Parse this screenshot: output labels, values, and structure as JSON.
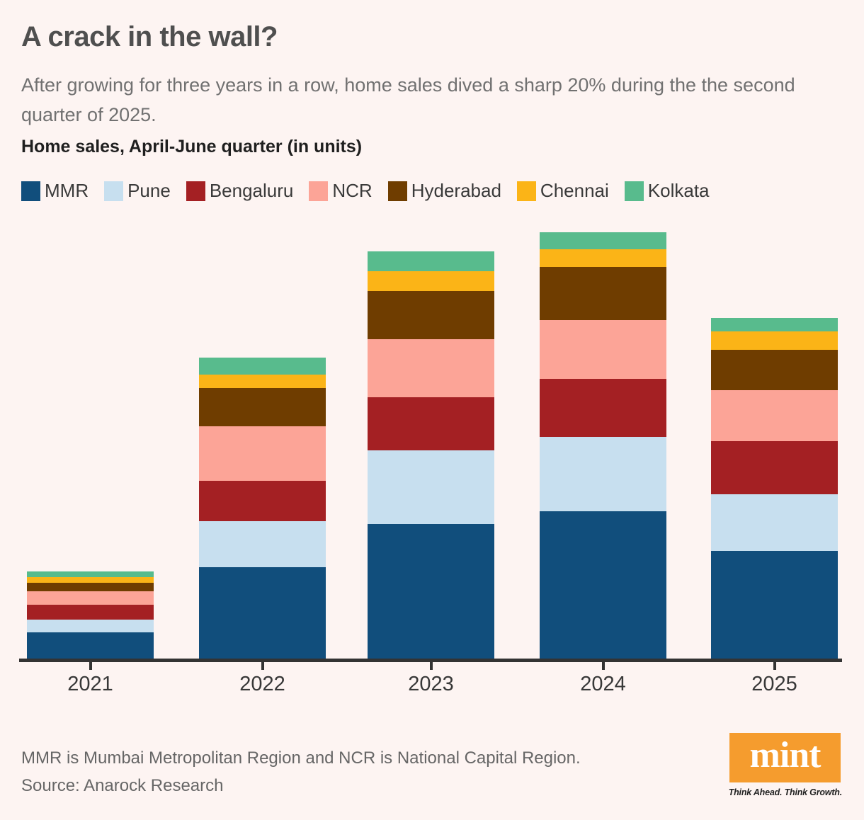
{
  "title": "A crack in the wall?",
  "subtitle": "After growing for three years in a row, home sales dived a sharp 20% during the the second quarter of 2025.",
  "chart_label": "Home sales, April-June quarter (in units)",
  "chart_data": {
    "type": "bar",
    "stacked": true,
    "title": "Home sales, April-June quarter (in units)",
    "xlabel": "",
    "ylabel": "",
    "grid": false,
    "legend_position": "top",
    "categories": [
      "2021",
      "2022",
      "2023",
      "2024",
      "2025"
    ],
    "series": [
      {
        "name": "MMR",
        "color": "#114E7C",
        "values": [
          7400,
          25785,
          38085,
          41540,
          30450
        ]
      },
      {
        "name": "Pune",
        "color": "#C7DFEF",
        "values": [
          3550,
          12970,
          20680,
          21145,
          15895
        ]
      },
      {
        "name": "Bengaluru",
        "color": "#A42023",
        "values": [
          4350,
          11505,
          15050,
          16360,
          15110
        ]
      },
      {
        "name": "NCR",
        "color": "#FCA497",
        "values": [
          3650,
          15340,
          16450,
          16550,
          14425
        ]
      },
      {
        "name": "Hyderabad",
        "color": "#6F3D00",
        "values": [
          2430,
          10780,
          13565,
          15085,
          11240
        ]
      },
      {
        "name": "Chennai",
        "color": "#FBB417",
        "values": [
          1590,
          3870,
          5490,
          5020,
          5360
        ]
      },
      {
        "name": "Kolkata",
        "color": "#58BB8D",
        "values": [
          1600,
          4680,
          5780,
          4640,
          3805
        ]
      }
    ],
    "totals": [
      24570,
      84930,
      115100,
      120340,
      96285
    ],
    "units_per_pixel": 200
  },
  "footnotes": {
    "definition": "MMR is Mumbai Metropolitan Region and NCR is National Capital Region.",
    "source": "Source: Anarock Research"
  },
  "logo": {
    "text": "mint",
    "tagline": "Think Ahead. Think Growth.",
    "color": "#F59C2E"
  },
  "colors": {
    "background": "#FDF4F2",
    "axis": "#333333",
    "title": "#4F4F4F",
    "subtitle": "#717171"
  }
}
